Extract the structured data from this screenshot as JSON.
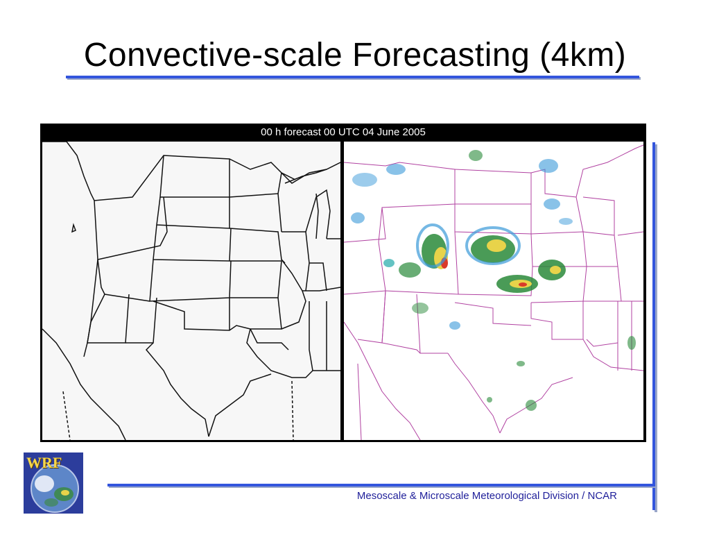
{
  "slide": {
    "title": "Convective-scale Forecasting (4km)",
    "footer": "Mesoscale & Microscale Meteorological Division / NCAR"
  },
  "figure": {
    "header": "00 h forecast 00 UTC 04 June 2005",
    "left_panel": "state-outline-map",
    "right_panel": "reflectivity-forecast-map"
  },
  "logo": {
    "text": "WRF"
  },
  "colors": {
    "accent_rule": "#3355dd",
    "footer_text": "#1f1f9a",
    "state_lines_right": "#b040a0",
    "logo_background": "#2c3d9c",
    "logo_text": "#f5d64a"
  }
}
